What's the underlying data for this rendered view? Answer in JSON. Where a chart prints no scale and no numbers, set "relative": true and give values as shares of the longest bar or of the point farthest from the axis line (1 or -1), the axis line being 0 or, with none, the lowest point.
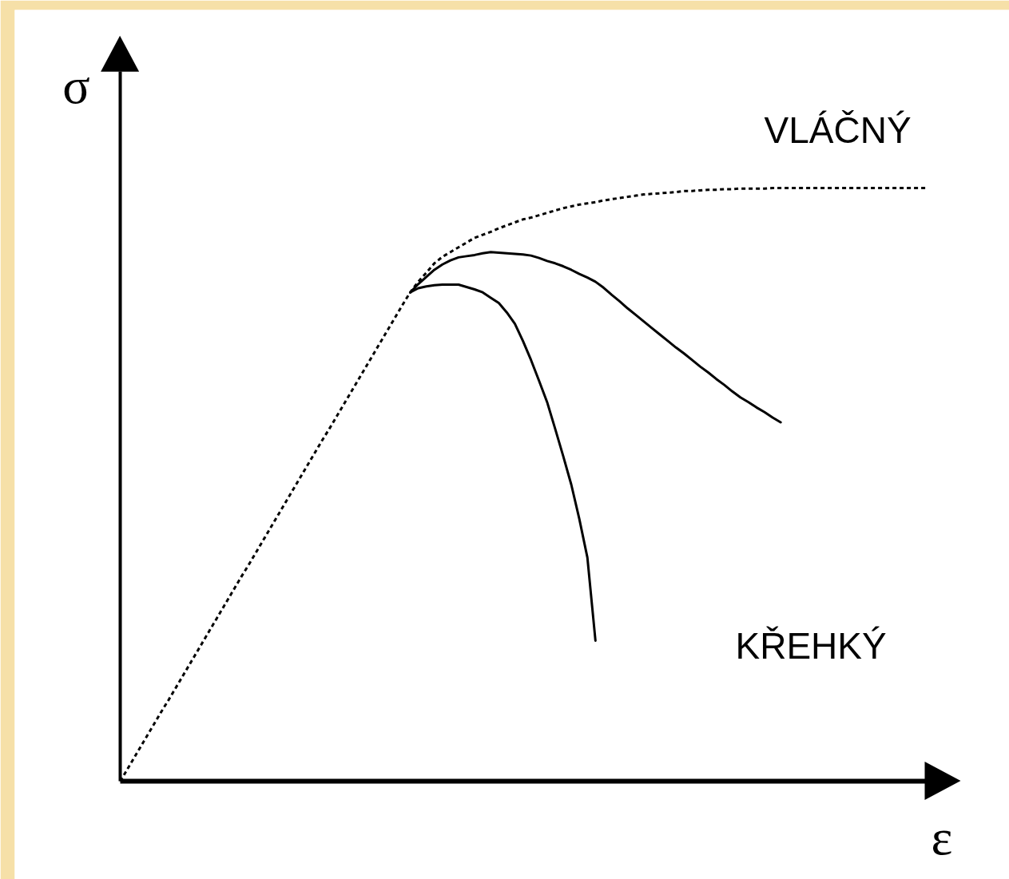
{
  "chart_data": {
    "type": "line",
    "relative": true,
    "xlabel": "ε",
    "ylabel": "σ",
    "annotations": [
      "KŘEHKÝ"
    ],
    "categories": [
      null,
      null,
      null,
      null,
      null,
      null,
      null,
      null,
      null,
      null,
      null,
      null,
      null,
      null,
      null,
      null,
      null,
      null,
      null,
      null,
      null,
      null,
      null,
      null,
      null,
      null,
      null,
      null,
      null,
      null,
      null,
      null,
      null,
      null,
      null,
      null,
      null,
      null,
      null,
      null,
      null,
      null,
      null,
      null,
      null,
      null,
      null,
      null,
      null,
      null,
      null,
      null,
      null,
      null,
      null,
      null,
      null,
      null,
      null,
      null,
      null,
      null,
      null,
      null,
      null,
      null,
      null,
      null,
      null,
      null,
      null,
      null,
      null,
      null,
      null,
      null,
      null,
      null,
      null,
      null,
      null,
      null,
      null,
      null,
      null,
      null,
      null,
      null,
      null,
      null,
      null,
      null,
      null,
      null,
      null,
      null,
      null,
      null,
      null,
      null,
      null
    ],
    "series": [
      {
        "name": "VLÁČNÝ",
        "color": "#000000",
        "line_style": "dotted",
        "values": [
          0,
          0.023,
          0.046,
          0.069,
          0.092,
          0.115,
          0.137,
          0.16,
          0.183,
          0.206,
          0.229,
          0.252,
          0.275,
          0.298,
          0.321,
          0.344,
          0.366,
          0.389,
          0.412,
          0.435,
          0.458,
          0.481,
          0.504,
          0.527,
          0.55,
          0.573,
          0.595,
          0.618,
          0.641,
          0.664,
          0.687,
          0.71,
          0.733,
          0.756,
          0.779,
          0.802,
          0.824,
          0.842,
          0.857,
          0.873,
          0.884,
          0.892,
          0.9,
          0.908,
          0.916,
          0.921,
          0.926,
          0.932,
          0.937,
          0.942,
          0.947,
          0.95,
          0.954,
          0.958,
          0.962,
          0.966,
          0.969,
          0.972,
          0.974,
          0.976,
          0.979,
          0.981,
          0.983,
          0.985,
          0.987,
          0.989,
          0.99,
          0.991,
          0.992,
          0.993,
          0.995,
          0.995,
          0.996,
          0.997,
          0.997,
          0.998,
          0.998,
          0.999,
          0.999,
          0.999,
          0.999,
          1.0,
          1.0,
          1.0,
          1.0,
          1.0,
          1.0,
          1.0,
          1.0,
          1.0,
          1.0,
          1.0,
          1.0,
          1.0,
          1.0,
          1.0,
          1.0,
          1.0,
          1.0,
          1.0,
          1.0
        ]
      },
      {
        "color": "#000000",
        "line_style": "solid",
        "values": [
          null,
          null,
          null,
          null,
          null,
          null,
          null,
          null,
          null,
          null,
          null,
          null,
          null,
          null,
          null,
          null,
          null,
          null,
          null,
          null,
          null,
          null,
          null,
          null,
          null,
          null,
          null,
          null,
          null,
          null,
          null,
          null,
          null,
          null,
          null,
          null,
          0.824,
          0.838,
          0.85,
          0.862,
          0.871,
          0.878,
          0.883,
          0.885,
          0.887,
          0.89,
          0.892,
          0.891,
          0.89,
          0.889,
          0.888,
          0.886,
          0.882,
          0.877,
          0.873,
          0.868,
          0.862,
          0.855,
          0.849,
          0.842,
          0.832,
          0.82,
          0.809,
          0.797,
          0.786,
          0.775,
          0.764,
          0.753,
          0.742,
          0.731,
          0.721,
          0.71,
          0.699,
          0.689,
          0.678,
          0.668,
          0.657,
          0.647,
          0.639,
          0.63,
          0.622,
          0.613,
          0.605,
          null,
          null,
          null,
          null,
          null,
          null,
          null,
          null,
          null,
          null,
          null,
          null,
          null,
          null,
          null,
          null,
          null,
          null
        ]
      },
      {
        "color": "#000000",
        "line_style": "solid",
        "values": [
          null,
          null,
          null,
          null,
          null,
          null,
          null,
          null,
          null,
          null,
          null,
          null,
          null,
          null,
          null,
          null,
          null,
          null,
          null,
          null,
          null,
          null,
          null,
          null,
          null,
          null,
          null,
          null,
          null,
          null,
          null,
          null,
          null,
          null,
          null,
          null,
          0.824,
          0.831,
          0.834,
          0.836,
          0.837,
          0.837,
          0.837,
          0.833,
          0.829,
          0.824,
          0.815,
          0.806,
          0.79,
          0.771,
          0.742,
          0.71,
          0.675,
          0.639,
          0.594,
          0.548,
          0.5,
          0.442,
          0.377,
          0.237,
          null,
          null,
          null,
          null,
          null,
          null,
          null,
          null,
          null,
          null,
          null,
          null,
          null,
          null,
          null,
          null,
          null,
          null,
          null,
          null,
          null,
          null,
          null,
          null,
          null,
          null,
          null,
          null,
          null,
          null,
          null,
          null,
          null,
          null,
          null,
          null,
          null,
          null,
          null,
          null,
          null
        ]
      }
    ]
  }
}
